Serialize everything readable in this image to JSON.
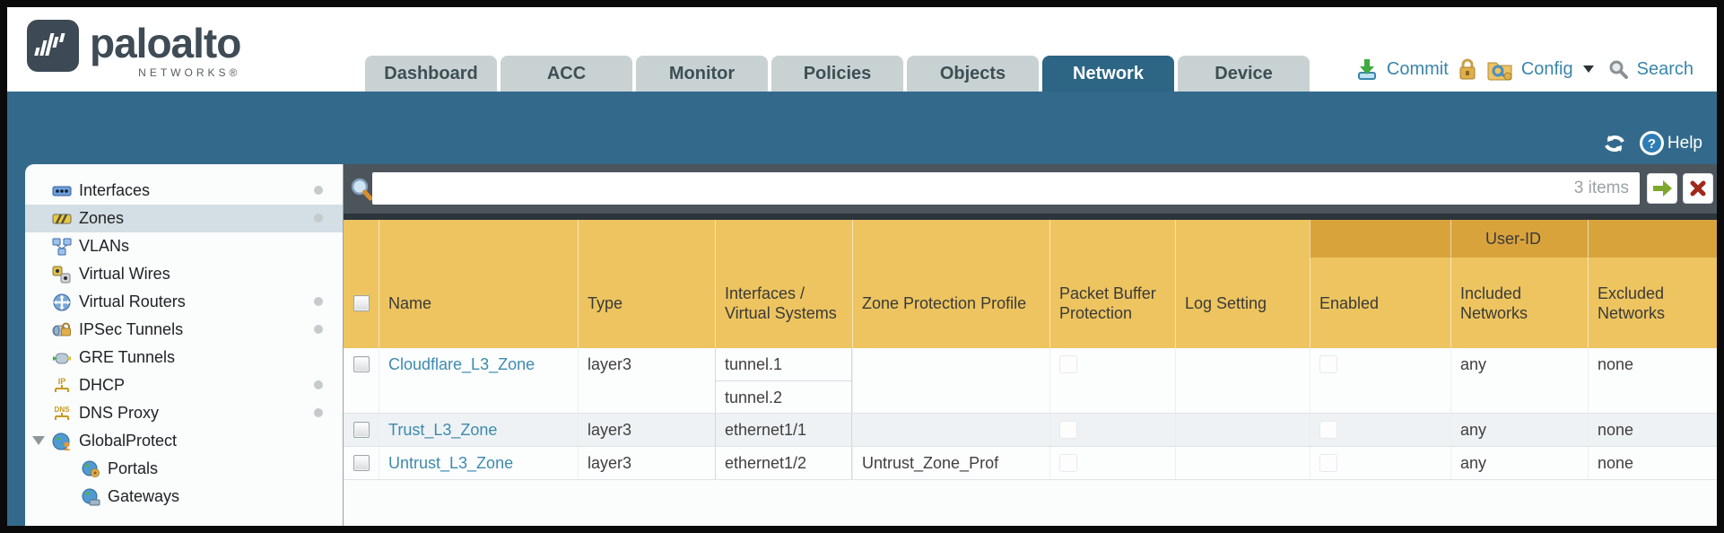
{
  "brand": {
    "wordmark": "paloalto",
    "subtext": "NETWORKS®"
  },
  "nav": {
    "tabs": [
      "Dashboard",
      "ACC",
      "Monitor",
      "Policies",
      "Objects",
      "Network",
      "Device"
    ],
    "active_tab": "Network",
    "actions": {
      "commit": "Commit",
      "config": "Config",
      "search": "Search"
    }
  },
  "band": {
    "help": "Help"
  },
  "sidebar": {
    "items": [
      {
        "label": "Interfaces",
        "icon": "interfaces-icon",
        "selected": false,
        "dot": true,
        "indent": 0,
        "expanded": false
      },
      {
        "label": "Zones",
        "icon": "zones-icon",
        "selected": true,
        "dot": true,
        "indent": 0,
        "expanded": false
      },
      {
        "label": "VLANs",
        "icon": "vlans-icon",
        "selected": false,
        "dot": false,
        "indent": 0,
        "expanded": false
      },
      {
        "label": "Virtual Wires",
        "icon": "virtual-wires-icon",
        "selected": false,
        "dot": false,
        "indent": 0,
        "expanded": false
      },
      {
        "label": "Virtual Routers",
        "icon": "virtual-routers-icon",
        "selected": false,
        "dot": true,
        "indent": 0,
        "expanded": false
      },
      {
        "label": "IPSec Tunnels",
        "icon": "ipsec-tunnels-icon",
        "selected": false,
        "dot": true,
        "indent": 0,
        "expanded": false
      },
      {
        "label": "GRE Tunnels",
        "icon": "gre-tunnels-icon",
        "selected": false,
        "dot": false,
        "indent": 0,
        "expanded": false
      },
      {
        "label": "DHCP",
        "icon": "dhcp-icon",
        "selected": false,
        "dot": true,
        "indent": 0,
        "expanded": false
      },
      {
        "label": "DNS Proxy",
        "icon": "dns-proxy-icon",
        "selected": false,
        "dot": true,
        "indent": 0,
        "expanded": false
      },
      {
        "label": "GlobalProtect",
        "icon": "globalprotect-icon",
        "selected": false,
        "dot": false,
        "indent": 0,
        "expanded": true
      },
      {
        "label": "Portals",
        "icon": "portals-icon",
        "selected": false,
        "dot": false,
        "indent": 1,
        "expanded": false
      },
      {
        "label": "Gateways",
        "icon": "gateways-icon",
        "selected": false,
        "dot": false,
        "indent": 1,
        "expanded": false
      }
    ]
  },
  "filter": {
    "value": "",
    "count": "3 items"
  },
  "table": {
    "group_header": "User-ID",
    "columns": [
      "Name",
      "Type",
      "Interfaces / Virtual Systems",
      "Zone Protection Profile",
      "Packet Buffer Protection",
      "Log Setting",
      "Enabled",
      "Included Networks",
      "Excluded Networks"
    ],
    "rows": [
      {
        "name": "Cloudflare_L3_Zone",
        "type": "layer3",
        "interfaces": [
          "tunnel.1",
          "tunnel.2"
        ],
        "zone_protection_profile": "",
        "log_setting": "",
        "included_networks": "any",
        "excluded_networks": "none",
        "checked": false
      },
      {
        "name": "Trust_L3_Zone",
        "type": "layer3",
        "interfaces": [
          "ethernet1/1"
        ],
        "zone_protection_profile": "",
        "log_setting": "",
        "included_networks": "any",
        "excluded_networks": "none",
        "checked": false
      },
      {
        "name": "Untrust_L3_Zone",
        "type": "layer3",
        "interfaces": [
          "ethernet1/2"
        ],
        "zone_protection_profile": "Untrust_Zone_Prof",
        "log_setting": "",
        "included_networks": "any",
        "excluded_networks": "none",
        "checked": false
      }
    ]
  }
}
